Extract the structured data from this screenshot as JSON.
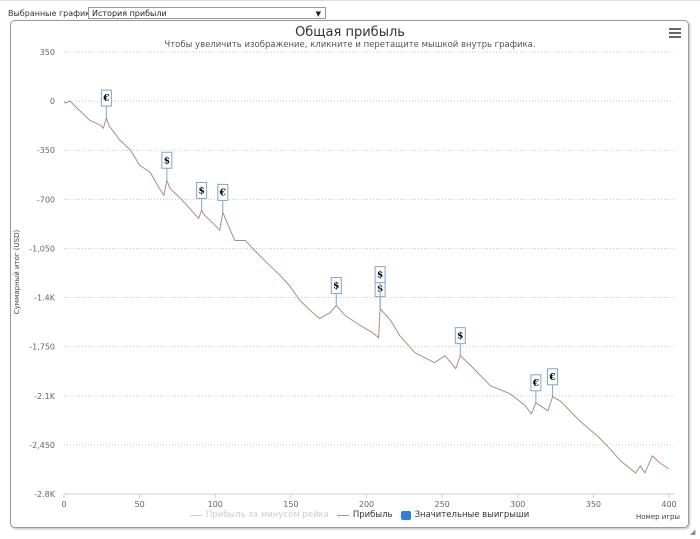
{
  "header": {
    "selected_label": "Выбранные графики:",
    "selected_value": "История прибыли",
    "dropdown_arrow": "▼"
  },
  "chart_data": {
    "type": "line",
    "title": "Общая прибыль",
    "subtitle": "Чтобы увеличить изображение, кликните и перетащите мышкой внутрь графика.",
    "xlabel": "Номер игры",
    "ylabel": "Суммарный итог (USD)",
    "xlim": [
      0,
      400
    ],
    "ylim": [
      -2800,
      350
    ],
    "x_ticks": [
      0,
      50,
      100,
      150,
      200,
      250,
      300,
      350,
      400
    ],
    "y_ticks": [
      {
        "value": 350,
        "label": "350"
      },
      {
        "value": 0,
        "label": "0"
      },
      {
        "value": -350,
        "label": "-350"
      },
      {
        "value": -700,
        "label": "-700"
      },
      {
        "value": -1050,
        "label": "-1,050"
      },
      {
        "value": -1400,
        "label": "-1.4K"
      },
      {
        "value": -1750,
        "label": "-1,750"
      },
      {
        "value": -2100,
        "label": "-2.1K"
      },
      {
        "value": -2450,
        "label": "-2,450"
      },
      {
        "value": -2800,
        "label": "-2.8K"
      }
    ],
    "grid": true,
    "legend_placement": "bottom",
    "legend": [
      "Прибыль за минусом рейка",
      "Прибыль",
      "Значительные выигрыши"
    ],
    "series": [
      {
        "name": "Прибыль",
        "color": "#b08a8a",
        "points": [
          [
            0,
            -5
          ],
          [
            1,
            -14
          ],
          [
            4,
            0
          ],
          [
            10,
            -64
          ],
          [
            17,
            -136
          ],
          [
            24,
            -171
          ],
          [
            26,
            -193
          ],
          [
            28,
            -121
          ],
          [
            30,
            -179
          ],
          [
            37,
            -279
          ],
          [
            44,
            -350
          ],
          [
            50,
            -457
          ],
          [
            57,
            -507
          ],
          [
            60,
            -564
          ],
          [
            63,
            -621
          ],
          [
            66,
            -671
          ],
          [
            68,
            -564
          ],
          [
            70,
            -621
          ],
          [
            77,
            -693
          ],
          [
            83,
            -764
          ],
          [
            89,
            -836
          ],
          [
            91,
            -779
          ],
          [
            93,
            -814
          ],
          [
            100,
            -886
          ],
          [
            103,
            -921
          ],
          [
            105,
            -793
          ],
          [
            110,
            -921
          ],
          [
            113,
            -993
          ],
          [
            120,
            -993
          ],
          [
            126,
            -1064
          ],
          [
            136,
            -1171
          ],
          [
            143,
            -1243
          ],
          [
            149,
            -1314
          ],
          [
            156,
            -1421
          ],
          [
            163,
            -1493
          ],
          [
            169,
            -1550
          ],
          [
            176,
            -1507
          ],
          [
            180,
            -1457
          ],
          [
            186,
            -1529
          ],
          [
            196,
            -1600
          ],
          [
            204,
            -1650
          ],
          [
            208,
            -1686
          ],
          [
            209,
            -1479
          ],
          [
            216,
            -1564
          ],
          [
            222,
            -1671
          ],
          [
            232,
            -1793
          ],
          [
            245,
            -1864
          ],
          [
            252,
            -1814
          ],
          [
            259,
            -1907
          ],
          [
            262,
            -1814
          ],
          [
            269,
            -1886
          ],
          [
            282,
            -2029
          ],
          [
            295,
            -2086
          ],
          [
            305,
            -2171
          ],
          [
            309,
            -2229
          ],
          [
            312,
            -2150
          ],
          [
            318,
            -2193
          ],
          [
            320,
            -2207
          ],
          [
            323,
            -2107
          ],
          [
            328,
            -2136
          ],
          [
            341,
            -2279
          ],
          [
            354,
            -2400
          ],
          [
            361,
            -2479
          ],
          [
            368,
            -2564
          ],
          [
            378,
            -2650
          ],
          [
            381,
            -2600
          ],
          [
            384,
            -2650
          ],
          [
            389,
            -2529
          ],
          [
            394,
            -2579
          ],
          [
            400,
            -2621
          ]
        ]
      },
      {
        "name": "Прибыль за минусом рейка",
        "color": "#cccccc",
        "hidden": true,
        "points": []
      }
    ],
    "flags": [
      {
        "x": 28,
        "y": -121,
        "symbol": "€"
      },
      {
        "x": 68,
        "y": -564,
        "symbol": "$"
      },
      {
        "x": 91,
        "y": -779,
        "symbol": "$"
      },
      {
        "x": 105,
        "y": -793,
        "symbol": "€"
      },
      {
        "x": 180,
        "y": -1457,
        "symbol": "$"
      },
      {
        "x": 209,
        "y": -1479,
        "symbol": "$"
      },
      {
        "x": 209,
        "y": -1479,
        "symbol": "$"
      },
      {
        "x": 262,
        "y": -1814,
        "symbol": "$"
      },
      {
        "x": 312,
        "y": -2150,
        "symbol": "€"
      },
      {
        "x": 323,
        "y": -2107,
        "symbol": "€"
      }
    ]
  },
  "colors": {
    "line": "#b08a8a",
    "flag_border": "#7ba7d0",
    "legend_box": "#2f7ed8",
    "legend_hidden": "#cccccc"
  }
}
